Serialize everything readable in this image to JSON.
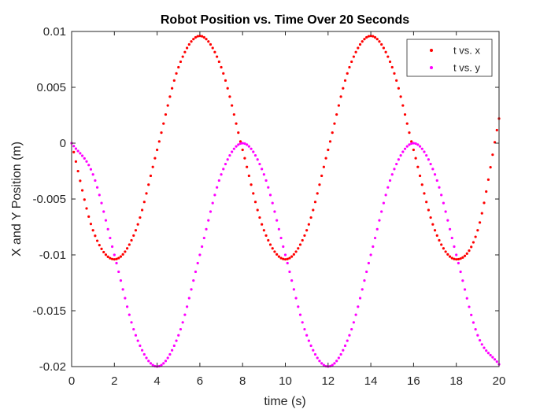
{
  "chart_data": {
    "type": "scatter",
    "title": "Robot Position vs. Time Over 20 Seconds",
    "xlabel": "time (s)",
    "ylabel": "X and Y Position (m)",
    "xlim": [
      0,
      20
    ],
    "ylim": [
      -0.02,
      0.01
    ],
    "xticks": [
      0,
      2,
      4,
      6,
      8,
      10,
      12,
      14,
      16,
      18,
      20
    ],
    "yticks": [
      0.01,
      0.005,
      0,
      -0.005,
      -0.01,
      -0.015,
      -0.02
    ],
    "xtick_labels": [
      "0",
      "2",
      "4",
      "6",
      "8",
      "10",
      "12",
      "14",
      "16",
      "18",
      "20"
    ],
    "ytick_labels": [
      "0.01",
      "0.005",
      "0",
      "-0.005",
      "-0.01",
      "-0.015",
      "-0.02"
    ],
    "grid": false,
    "legend_position": "top-right",
    "series": [
      {
        "name": "t vs. x",
        "color": "#ff0000",
        "marker": "dot",
        "x": [
          0,
          1,
          2,
          3,
          4,
          5,
          6,
          7,
          8,
          9,
          10,
          11,
          12,
          13,
          14,
          15,
          16,
          17,
          18,
          19,
          20
        ],
        "y": [
          0,
          -0.0078,
          -0.0104,
          -0.0078,
          -0.0006,
          0.0068,
          0.0096,
          0.0068,
          -0.0006,
          -0.0078,
          -0.0104,
          -0.0078,
          -0.0006,
          0.0068,
          0.0096,
          0.0068,
          -0.0006,
          -0.0078,
          -0.0104,
          -0.0078,
          0.0022
        ]
      },
      {
        "name": "t vs. y",
        "color": "#ff00ff",
        "marker": "dot",
        "x": [
          0,
          1,
          2,
          3,
          4,
          5,
          6,
          7,
          8,
          9,
          10,
          11,
          12,
          13,
          14,
          15,
          16,
          17,
          18,
          19,
          20
        ],
        "y": [
          0,
          -0.0028,
          -0.01,
          -0.0172,
          -0.02,
          -0.0172,
          -0.01,
          -0.0028,
          0,
          -0.0028,
          -0.01,
          -0.0172,
          -0.02,
          -0.0172,
          -0.01,
          -0.0028,
          0,
          -0.0028,
          -0.01,
          -0.0172,
          -0.0198
        ]
      }
    ]
  }
}
